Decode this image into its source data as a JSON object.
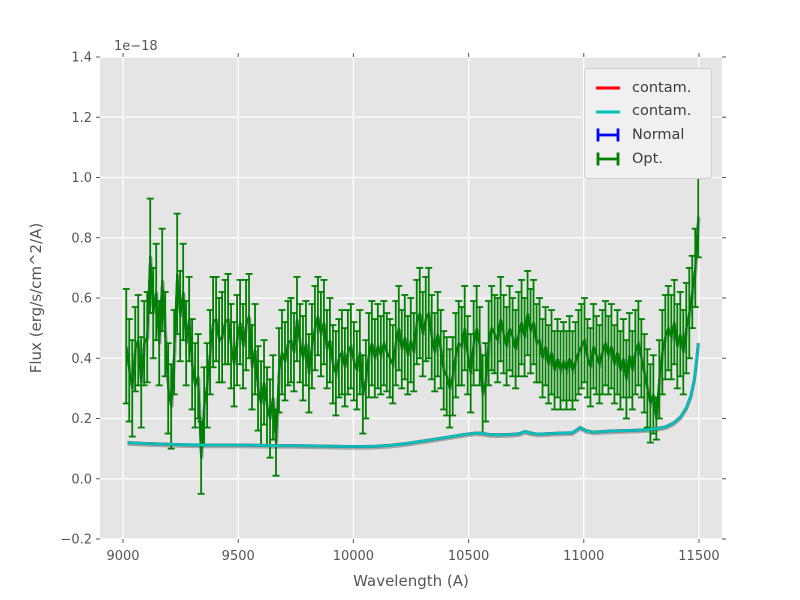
{
  "colors": {
    "figure_bg": "#ffffff",
    "axes_bg": "#e5e5e5",
    "grid": "#ffffff",
    "tick": "#555555",
    "text": "#555555",
    "shadow_edge": "rgba(80,90,90,0.45)"
  },
  "chart_data": {
    "type": "line",
    "title": "",
    "xlabel": "Wavelength (A)",
    "ylabel": "Flux (erg/s/cm^2/A)",
    "y_offset_text": "1e−18",
    "flux_unit_scale": "1e-18 erg/s/cm^2/A",
    "xlim": [
      8900,
      11600
    ],
    "ylim": [
      -0.2,
      1.4
    ],
    "xticks": [
      9000,
      9500,
      10000,
      10500,
      11000,
      11500
    ],
    "xtick_labels": [
      "9000",
      "9500",
      "10000",
      "10500",
      "11000",
      "11500"
    ],
    "yticks": [
      -0.2,
      0.0,
      0.2,
      0.4,
      0.6,
      0.8,
      1.0,
      1.2,
      1.4
    ],
    "ytick_labels": [
      "−0.2",
      "0.0",
      "0.2",
      "0.4",
      "0.6",
      "0.8",
      "1.0",
      "1.2",
      "1.4"
    ],
    "grid": true,
    "legend": {
      "position": "upper right",
      "items": [
        {
          "label": "contam.",
          "color": "#ff0000",
          "style": "line"
        },
        {
          "label": "contam.",
          "color": "#00bfbf",
          "style": "line"
        },
        {
          "label": "Normal",
          "color": "#0000ff",
          "style": "errorbar"
        },
        {
          "label": "Opt.",
          "color": "#008000",
          "style": "errorbar"
        }
      ]
    },
    "series": [
      {
        "id": "contam_red",
        "name": "contam.",
        "type": "line",
        "color": "#ff0000",
        "note": "overplotted by the cyan contam. curve; only a dark sliver visible beneath it",
        "points_ref": "contam_cyan"
      },
      {
        "id": "contam_cyan",
        "name": "contam.",
        "type": "line",
        "color": "#00bfbf",
        "points": [
          [
            9020,
            0.12
          ],
          [
            9100,
            0.117
          ],
          [
            9180,
            0.115
          ],
          [
            9260,
            0.113
          ],
          [
            9340,
            0.112
          ],
          [
            9420,
            0.112
          ],
          [
            9500,
            0.112
          ],
          [
            9580,
            0.111
          ],
          [
            9660,
            0.11
          ],
          [
            9740,
            0.11
          ],
          [
            9820,
            0.109
          ],
          [
            9900,
            0.108
          ],
          [
            9980,
            0.107
          ],
          [
            10040,
            0.107
          ],
          [
            10100,
            0.108
          ],
          [
            10160,
            0.111
          ],
          [
            10220,
            0.116
          ],
          [
            10290,
            0.124
          ],
          [
            10360,
            0.132
          ],
          [
            10430,
            0.141
          ],
          [
            10490,
            0.148
          ],
          [
            10530,
            0.152
          ],
          [
            10560,
            0.151
          ],
          [
            10590,
            0.147
          ],
          [
            10630,
            0.146
          ],
          [
            10680,
            0.147
          ],
          [
            10720,
            0.15
          ],
          [
            10745,
            0.157
          ],
          [
            10770,
            0.152
          ],
          [
            10800,
            0.148
          ],
          [
            10850,
            0.15
          ],
          [
            10900,
            0.152
          ],
          [
            10950,
            0.153
          ],
          [
            10985,
            0.17
          ],
          [
            11010,
            0.16
          ],
          [
            11040,
            0.155
          ],
          [
            11080,
            0.157
          ],
          [
            11130,
            0.159
          ],
          [
            11180,
            0.16
          ],
          [
            11230,
            0.161
          ],
          [
            11280,
            0.163
          ],
          [
            11320,
            0.167
          ],
          [
            11355,
            0.172
          ],
          [
            11390,
            0.185
          ],
          [
            11420,
            0.205
          ],
          [
            11445,
            0.235
          ],
          [
            11465,
            0.275
          ],
          [
            11480,
            0.33
          ],
          [
            11490,
            0.395
          ],
          [
            11497,
            0.45
          ]
        ]
      },
      {
        "id": "normal",
        "name": "Normal",
        "type": "errorbar",
        "color": "#0000ff",
        "note": "overplotted by the green Opt. series; only a dark sliver visible beneath it",
        "points_ref": "opt"
      },
      {
        "id": "opt",
        "name": "Opt.",
        "type": "errorbar",
        "color": "#008000",
        "x_start": 9014,
        "x_step": 13,
        "y": [
          0.44,
          0.36,
          0.3,
          0.43,
          0.46,
          0.32,
          0.45,
          0.47,
          0.74,
          0.55,
          0.62,
          0.45,
          0.66,
          0.48,
          0.3,
          0.24,
          0.42,
          0.68,
          0.54,
          0.62,
          0.45,
          0.53,
          0.38,
          0.31,
          0.34,
          0.07,
          0.24,
          0.31,
          0.42,
          0.52,
          0.53,
          0.46,
          0.47,
          0.52,
          0.53,
          0.44,
          0.38,
          0.46,
          0.52,
          0.44,
          0.51,
          0.54,
          0.37,
          0.43,
          0.3,
          0.25,
          0.32,
          0.24,
          0.2,
          0.27,
          0.12,
          0.36,
          0.42,
          0.39,
          0.45,
          0.46,
          0.42,
          0.53,
          0.45,
          0.4,
          0.45,
          0.35,
          0.44,
          0.5,
          0.54,
          0.48,
          0.52,
          0.43,
          0.46,
          0.38,
          0.35,
          0.4,
          0.42,
          0.37,
          0.42,
          0.44,
          0.39,
          0.36,
          0.42,
          0.28,
          0.33,
          0.41,
          0.45,
          0.4,
          0.44,
          0.41,
          0.45,
          0.42,
          0.4,
          0.38,
          0.45,
          0.5,
          0.43,
          0.47,
          0.41,
          0.46,
          0.42,
          0.52,
          0.55,
          0.48,
          0.53,
          0.55,
          0.47,
          0.42,
          0.48,
          0.43,
          0.36,
          0.34,
          0.3,
          0.34,
          0.41,
          0.45,
          0.44,
          0.5,
          0.41,
          0.35,
          0.45,
          0.5,
          0.44,
          0.28,
          0.32,
          0.45,
          0.5,
          0.48,
          0.46,
          0.53,
          0.48,
          0.44,
          0.5,
          0.47,
          0.43,
          0.48,
          0.52,
          0.47,
          0.55,
          0.49,
          0.52,
          0.45,
          0.46,
          0.4,
          0.44,
          0.38,
          0.42,
          0.36,
          0.4,
          0.36,
          0.39,
          0.36,
          0.4,
          0.36,
          0.39,
          0.42,
          0.44,
          0.46,
          0.4,
          0.37,
          0.44,
          0.41,
          0.38,
          0.42,
          0.45,
          0.41,
          0.44,
          0.38,
          0.42,
          0.36,
          0.4,
          0.33,
          0.41,
          0.36,
          0.42,
          0.45,
          0.4,
          0.35,
          0.3,
          0.25,
          0.28,
          0.2,
          0.33,
          0.42,
          0.47,
          0.5,
          0.47,
          0.52,
          0.44,
          0.48,
          0.42,
          0.5,
          0.55,
          0.62,
          0.7,
          0.87
        ],
        "yerr": [
          0.19,
          0.17,
          0.16,
          0.14,
          0.15,
          0.15,
          0.14,
          0.15,
          0.19,
          0.15,
          0.16,
          0.14,
          0.17,
          0.14,
          0.15,
          0.14,
          0.14,
          0.2,
          0.15,
          0.16,
          0.14,
          0.14,
          0.15,
          0.14,
          0.14,
          0.12,
          0.13,
          0.14,
          0.14,
          0.15,
          0.14,
          0.14,
          0.15,
          0.14,
          0.15,
          0.14,
          0.14,
          0.15,
          0.14,
          0.14,
          0.15,
          0.14,
          0.14,
          0.15,
          0.14,
          0.14,
          0.14,
          0.13,
          0.13,
          0.14,
          0.11,
          0.14,
          0.14,
          0.13,
          0.14,
          0.14,
          0.13,
          0.14,
          0.13,
          0.14,
          0.14,
          0.13,
          0.14,
          0.14,
          0.13,
          0.14,
          0.14,
          0.13,
          0.14,
          0.13,
          0.14,
          0.13,
          0.14,
          0.13,
          0.14,
          0.14,
          0.13,
          0.13,
          0.14,
          0.13,
          0.13,
          0.14,
          0.14,
          0.13,
          0.14,
          0.13,
          0.14,
          0.13,
          0.13,
          0.13,
          0.14,
          0.14,
          0.13,
          0.14,
          0.13,
          0.14,
          0.13,
          0.14,
          0.15,
          0.14,
          0.14,
          0.15,
          0.14,
          0.13,
          0.14,
          0.13,
          0.13,
          0.13,
          0.13,
          0.13,
          0.14,
          0.14,
          0.13,
          0.14,
          0.13,
          0.13,
          0.14,
          0.14,
          0.13,
          0.13,
          0.13,
          0.14,
          0.14,
          0.13,
          0.14,
          0.14,
          0.13,
          0.13,
          0.14,
          0.13,
          0.13,
          0.14,
          0.14,
          0.13,
          0.14,
          0.14,
          0.14,
          0.13,
          0.14,
          0.13,
          0.13,
          0.13,
          0.14,
          0.13,
          0.13,
          0.13,
          0.13,
          0.13,
          0.14,
          0.13,
          0.13,
          0.14,
          0.14,
          0.14,
          0.13,
          0.13,
          0.14,
          0.13,
          0.13,
          0.14,
          0.14,
          0.13,
          0.14,
          0.13,
          0.14,
          0.13,
          0.13,
          0.13,
          0.14,
          0.13,
          0.14,
          0.14,
          0.13,
          0.13,
          0.13,
          0.13,
          0.13,
          0.07,
          0.13,
          0.14,
          0.14,
          0.14,
          0.14,
          0.14,
          0.14,
          0.14,
          0.14,
          0.15,
          0.15,
          0.12,
          0.13,
          0.135
        ]
      }
    ]
  }
}
